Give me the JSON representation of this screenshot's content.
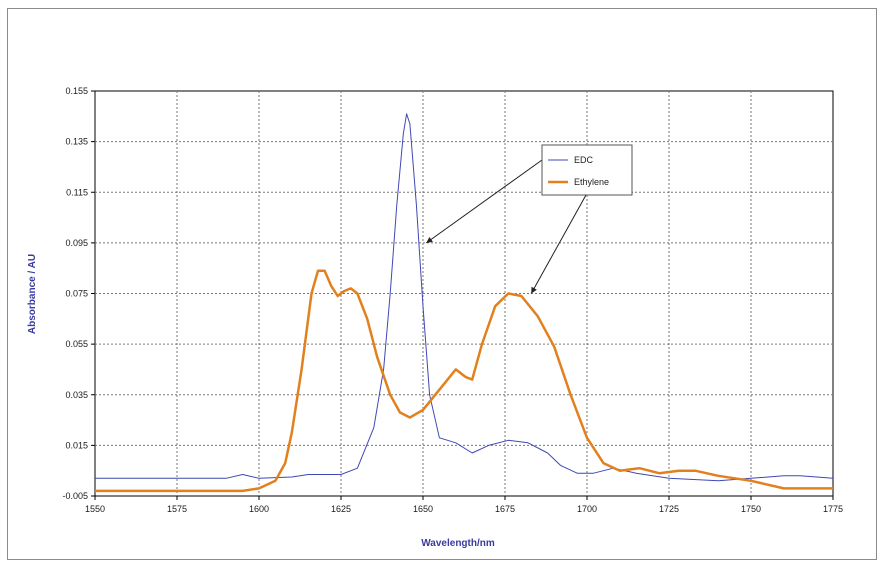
{
  "chart_data": {
    "type": "line",
    "title": "",
    "xlabel": "Wavelength/nm",
    "ylabel": "Absorbance / AU",
    "xlim": [
      1550,
      1775
    ],
    "ylim": [
      -0.005,
      0.155
    ],
    "x_ticks": [
      "1550",
      "1575",
      "1600",
      "1625",
      "1650",
      "1675",
      "1700",
      "1725",
      "1750",
      "1775"
    ],
    "y_ticks": [
      "-0.005",
      "0.015",
      "0.035",
      "0.055",
      "0.075",
      "0.095",
      "0.115",
      "0.135",
      "0.155"
    ],
    "grid": true,
    "legend_position": "top-right",
    "series": [
      {
        "name": "EDC",
        "color": "#3f48b5",
        "points": [
          [
            1550,
            0.002
          ],
          [
            1590,
            0.002
          ],
          [
            1595,
            0.0035
          ],
          [
            1600,
            0.002
          ],
          [
            1610,
            0.0025
          ],
          [
            1615,
            0.0035
          ],
          [
            1625,
            0.0035
          ],
          [
            1630,
            0.006
          ],
          [
            1635,
            0.022
          ],
          [
            1638,
            0.045
          ],
          [
            1640,
            0.075
          ],
          [
            1642,
            0.11
          ],
          [
            1644,
            0.138
          ],
          [
            1645,
            0.146
          ],
          [
            1646,
            0.142
          ],
          [
            1648,
            0.11
          ],
          [
            1650,
            0.07
          ],
          [
            1652,
            0.035
          ],
          [
            1655,
            0.018
          ],
          [
            1660,
            0.016
          ],
          [
            1665,
            0.012
          ],
          [
            1670,
            0.015
          ],
          [
            1676,
            0.017
          ],
          [
            1682,
            0.016
          ],
          [
            1688,
            0.012
          ],
          [
            1692,
            0.007
          ],
          [
            1697,
            0.004
          ],
          [
            1702,
            0.004
          ],
          [
            1708,
            0.006
          ],
          [
            1715,
            0.004
          ],
          [
            1725,
            0.002
          ],
          [
            1740,
            0.001
          ],
          [
            1750,
            0.002
          ],
          [
            1760,
            0.003
          ],
          [
            1765,
            0.003
          ],
          [
            1775,
            0.002
          ]
        ]
      },
      {
        "name": "Ethylene",
        "color": "#e3801e",
        "points": [
          [
            1550,
            -0.003
          ],
          [
            1595,
            -0.003
          ],
          [
            1600,
            -0.002
          ],
          [
            1605,
            0.001
          ],
          [
            1608,
            0.008
          ],
          [
            1610,
            0.02
          ],
          [
            1613,
            0.045
          ],
          [
            1616,
            0.075
          ],
          [
            1618,
            0.084
          ],
          [
            1620,
            0.084
          ],
          [
            1622,
            0.078
          ],
          [
            1624,
            0.074
          ],
          [
            1626,
            0.076
          ],
          [
            1628,
            0.077
          ],
          [
            1630,
            0.075
          ],
          [
            1633,
            0.065
          ],
          [
            1636,
            0.05
          ],
          [
            1640,
            0.035
          ],
          [
            1643,
            0.028
          ],
          [
            1646,
            0.026
          ],
          [
            1650,
            0.029
          ],
          [
            1655,
            0.037
          ],
          [
            1660,
            0.045
          ],
          [
            1663,
            0.042
          ],
          [
            1665,
            0.041
          ],
          [
            1668,
            0.055
          ],
          [
            1672,
            0.07
          ],
          [
            1676,
            0.075
          ],
          [
            1680,
            0.074
          ],
          [
            1685,
            0.066
          ],
          [
            1690,
            0.054
          ],
          [
            1695,
            0.035
          ],
          [
            1700,
            0.018
          ],
          [
            1705,
            0.008
          ],
          [
            1710,
            0.005
          ],
          [
            1716,
            0.006
          ],
          [
            1722,
            0.004
          ],
          [
            1728,
            0.005
          ],
          [
            1733,
            0.005
          ],
          [
            1740,
            0.003
          ],
          [
            1750,
            0.001
          ],
          [
            1760,
            -0.002
          ],
          [
            1775,
            -0.002
          ]
        ]
      }
    ],
    "annotations": [
      {
        "target": "EDC",
        "point": [
          1651,
          0.095
        ]
      },
      {
        "target": "Ethylene",
        "point": [
          1683,
          0.075
        ]
      }
    ]
  }
}
